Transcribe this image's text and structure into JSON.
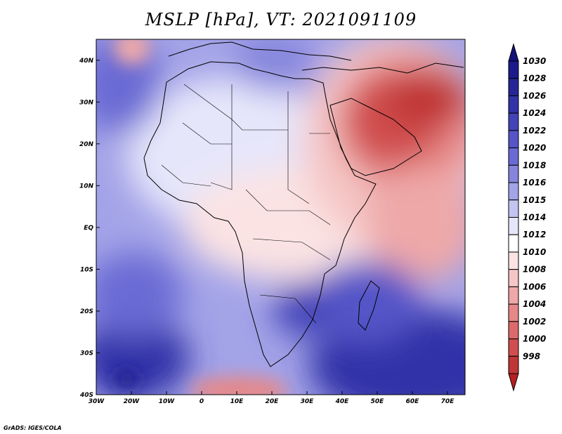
{
  "title": "MSLP [hPa], VT: 2021091109",
  "credit": "GrADS: IGES/COLA",
  "map": {
    "lon_range": [
      -30,
      75
    ],
    "lat_range": [
      -40,
      45
    ],
    "lon_ticks": [
      {
        "value": -30,
        "label": "30W"
      },
      {
        "value": -20,
        "label": "20W"
      },
      {
        "value": -10,
        "label": "10W"
      },
      {
        "value": 0,
        "label": "0"
      },
      {
        "value": 10,
        "label": "10E"
      },
      {
        "value": 20,
        "label": "20E"
      },
      {
        "value": 30,
        "label": "30E"
      },
      {
        "value": 40,
        "label": "40E"
      },
      {
        "value": 50,
        "label": "50E"
      },
      {
        "value": 60,
        "label": "60E"
      },
      {
        "value": 70,
        "label": "70E"
      }
    ],
    "lat_ticks": [
      {
        "value": 40,
        "label": "40N"
      },
      {
        "value": 30,
        "label": "30N"
      },
      {
        "value": 20,
        "label": "20N"
      },
      {
        "value": 10,
        "label": "10N"
      },
      {
        "value": 0,
        "label": "EQ"
      },
      {
        "value": -10,
        "label": "10S"
      },
      {
        "value": -20,
        "label": "20S"
      },
      {
        "value": -30,
        "label": "30S"
      },
      {
        "value": -40,
        "label": "40S"
      }
    ]
  },
  "colorbar": {
    "levels": [
      {
        "label": "1030",
        "color": "#1a1a8c"
      },
      {
        "label": "1028",
        "color": "#252598"
      },
      {
        "label": "1026",
        "color": "#3232a8"
      },
      {
        "label": "1024",
        "color": "#4343b8"
      },
      {
        "label": "1022",
        "color": "#5555c8"
      },
      {
        "label": "1020",
        "color": "#6a6ad4"
      },
      {
        "label": "1018",
        "color": "#8585dd"
      },
      {
        "label": "1016",
        "color": "#a3a3e8"
      },
      {
        "label": "1015",
        "color": "#c4c4f2"
      },
      {
        "label": "1014",
        "color": "#e6e6fb"
      },
      {
        "label": "1012",
        "color": "#ffffff"
      },
      {
        "label": "1010",
        "color": "#fbe3e3"
      },
      {
        "label": "1008",
        "color": "#f5c6c6"
      },
      {
        "label": "1006",
        "color": "#eea8a8"
      },
      {
        "label": "1004",
        "color": "#e68888"
      },
      {
        "label": "1002",
        "color": "#dc6a6a"
      },
      {
        "label": "1000",
        "color": "#d04e4e"
      },
      {
        "label": "998",
        "color": "#c03636"
      }
    ],
    "top_color": "#12127a",
    "bottom_color": "#b52020"
  }
}
